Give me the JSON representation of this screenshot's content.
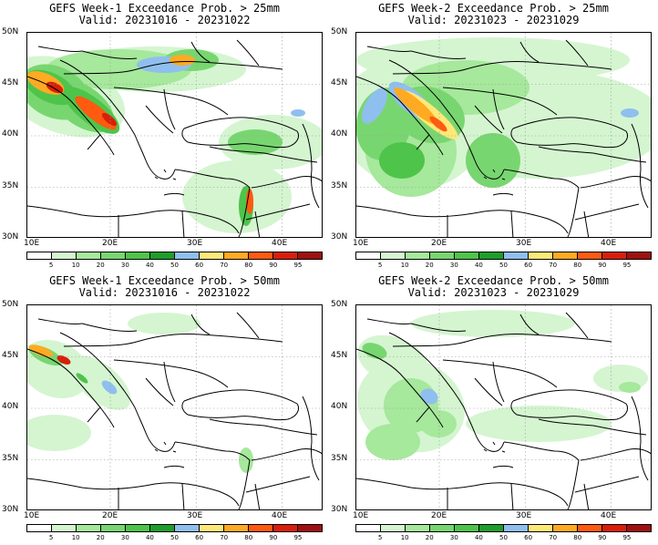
{
  "panels": [
    {
      "title_line1": "GEFS Week-1 Exceedance Prob. > 25mm",
      "title_line2": "Valid: 20231016 - 20231022",
      "week": 1,
      "threshold_mm": 25
    },
    {
      "title_line1": "GEFS Week-2 Exceedance Prob. > 25mm",
      "title_line2": "Valid: 20231023 - 20231029",
      "week": 2,
      "threshold_mm": 25
    },
    {
      "title_line1": "GEFS Week-1 Exceedance Prob. > 50mm",
      "title_line2": "Valid: 20231016 - 20231022",
      "week": 1,
      "threshold_mm": 50
    },
    {
      "title_line1": "GEFS Week-2 Exceedance Prob. > 50mm",
      "title_line2": "Valid: 20231023 - 20231029",
      "week": 2,
      "threshold_mm": 50
    }
  ],
  "lat_labels": [
    "50N",
    "45N",
    "40N",
    "35N",
    "30N"
  ],
  "lon_labels": [
    "10E",
    "20E",
    "30E",
    "40E"
  ],
  "colorbar_labels": [
    "5",
    "10",
    "20",
    "30",
    "40",
    "50",
    "60",
    "70",
    "80",
    "90",
    "95"
  ],
  "colorbar_colors": [
    "#ffffff",
    "#d4f5d0",
    "#a6e89c",
    "#78d670",
    "#4ec44a",
    "#1e9e2a",
    "#8fbfee",
    "#ffe878",
    "#ffaa22",
    "#ff5a10",
    "#d91e0a",
    "#a01010"
  ]
}
